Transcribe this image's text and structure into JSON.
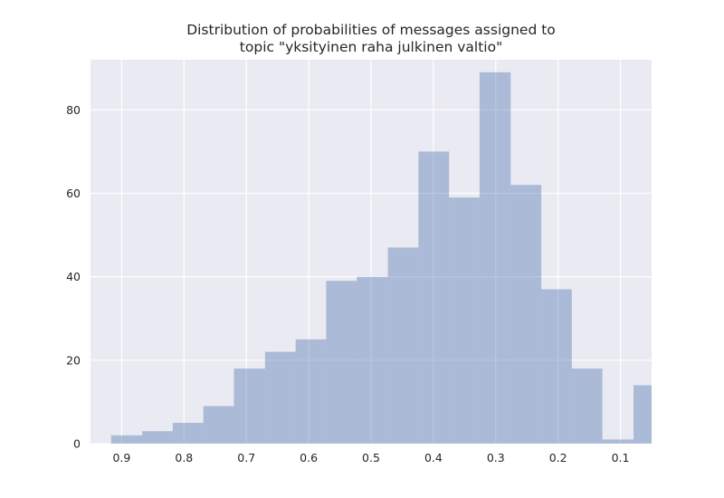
{
  "chart_data": {
    "type": "bar",
    "title": "Distribution of probabilities of messages assigned to\ntopic \"yksityinen raha julkinen valtio\"",
    "xlabel": "",
    "ylabel": "",
    "x_axis_reversed": true,
    "xlim": [
      0.95,
      0.05
    ],
    "ylim": [
      0,
      92
    ],
    "xticks": [
      "0.9",
      "0.8",
      "0.7",
      "0.6",
      "0.5",
      "0.4",
      "0.3",
      "0.2",
      "0.1"
    ],
    "yticks": [
      "0",
      "20",
      "40",
      "60",
      "80"
    ],
    "grid": true,
    "bins": [
      {
        "x_start": 0.917,
        "x_end": 0.867,
        "count": 2
      },
      {
        "x_start": 0.867,
        "x_end": 0.818,
        "count": 3
      },
      {
        "x_start": 0.818,
        "x_end": 0.769,
        "count": 5
      },
      {
        "x_start": 0.769,
        "x_end": 0.72,
        "count": 9
      },
      {
        "x_start": 0.72,
        "x_end": 0.67,
        "count": 18
      },
      {
        "x_start": 0.67,
        "x_end": 0.621,
        "count": 22
      },
      {
        "x_start": 0.621,
        "x_end": 0.572,
        "count": 25
      },
      {
        "x_start": 0.572,
        "x_end": 0.523,
        "count": 39
      },
      {
        "x_start": 0.523,
        "x_end": 0.473,
        "count": 40
      },
      {
        "x_start": 0.473,
        "x_end": 0.424,
        "count": 47
      },
      {
        "x_start": 0.424,
        "x_end": 0.375,
        "count": 70
      },
      {
        "x_start": 0.375,
        "x_end": 0.326,
        "count": 59
      },
      {
        "x_start": 0.326,
        "x_end": 0.276,
        "count": 89
      },
      {
        "x_start": 0.276,
        "x_end": 0.227,
        "count": 62
      },
      {
        "x_start": 0.227,
        "x_end": 0.178,
        "count": 37
      },
      {
        "x_start": 0.178,
        "x_end": 0.129,
        "count": 18
      },
      {
        "x_start": 0.129,
        "x_end": 0.079,
        "count": 1
      },
      {
        "x_start": 0.079,
        "x_end": 0.03,
        "count": 14
      }
    ],
    "colors": {
      "plot_background": "#eaeaf2",
      "grid": "#ffffff",
      "bar_fill": "#4c72b0",
      "bar_opacity": 0.4,
      "text": "#262626"
    }
  }
}
